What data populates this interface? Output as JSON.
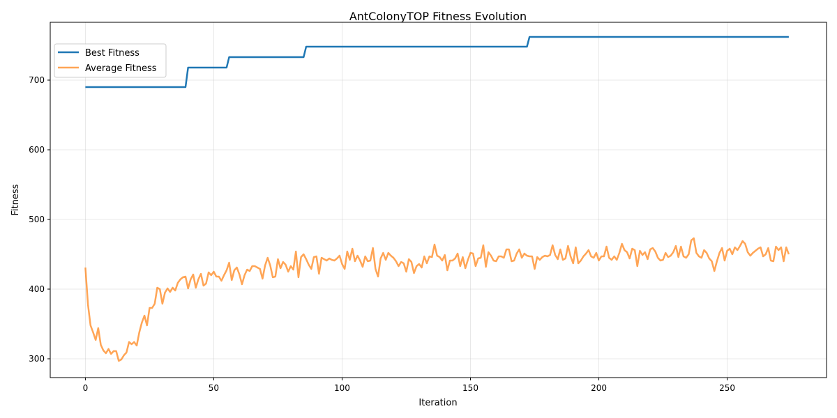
{
  "chart_data": {
    "type": "line",
    "title": "AntColonyTOP Fitness Evolution",
    "xlabel": "Iteration",
    "ylabel": "Fitness",
    "xlim": [
      -13.7,
      288.7
    ],
    "ylim": [
      273,
      783
    ],
    "xticks": [
      0,
      50,
      100,
      150,
      200,
      250
    ],
    "yticks": [
      300,
      400,
      500,
      600,
      700
    ],
    "grid": true,
    "legend_position": "top-left",
    "colors": {
      "best": "#1f77b4",
      "average": "#ff7f0e"
    },
    "series": [
      {
        "name": "Best Fitness",
        "key": "best",
        "steps": [
          {
            "from": 0,
            "to": 39,
            "value": 690
          },
          {
            "from": 40,
            "to": 55,
            "value": 718
          },
          {
            "from": 56,
            "to": 85,
            "value": 733
          },
          {
            "from": 86,
            "to": 172,
            "value": 748
          },
          {
            "from": 173,
            "to": 274,
            "value": 762
          }
        ]
      },
      {
        "name": "Average Fitness",
        "key": "average",
        "values": [
          431,
          378,
          348,
          338,
          327,
          344,
          320,
          312,
          308,
          314,
          307,
          311,
          311,
          297,
          299,
          305,
          309,
          324,
          321,
          324,
          319,
          338,
          352,
          362,
          348,
          373,
          373,
          379,
          402,
          400,
          379,
          395,
          401,
          396,
          402,
          398,
          409,
          414,
          417,
          418,
          401,
          414,
          421,
          402,
          414,
          422,
          405,
          408,
          424,
          420,
          425,
          418,
          418,
          412,
          420,
          427,
          438,
          413,
          427,
          431,
          421,
          407,
          420,
          428,
          426,
          433,
          433,
          431,
          429,
          415,
          434,
          445,
          434,
          417,
          418,
          443,
          430,
          439,
          435,
          425,
          433,
          428,
          454,
          417,
          446,
          450,
          443,
          435,
          429,
          446,
          447,
          422,
          445,
          443,
          441,
          444,
          442,
          441,
          444,
          448,
          436,
          429,
          454,
          442,
          458,
          440,
          448,
          441,
          432,
          447,
          440,
          441,
          459,
          429,
          418,
          444,
          452,
          442,
          452,
          448,
          445,
          440,
          433,
          439,
          437,
          425,
          443,
          439,
          423,
          433,
          436,
          431,
          447,
          437,
          447,
          446,
          464,
          448,
          446,
          441,
          449,
          427,
          441,
          441,
          444,
          451,
          433,
          446,
          430,
          442,
          452,
          451,
          433,
          444,
          445,
          463,
          432,
          453,
          448,
          441,
          440,
          447,
          447,
          445,
          457,
          457,
          440,
          441,
          451,
          457,
          445,
          451,
          448,
          447,
          447,
          429,
          446,
          442,
          446,
          448,
          447,
          449,
          463,
          449,
          443,
          457,
          442,
          444,
          462,
          447,
          437,
          460,
          437,
          441,
          447,
          451,
          456,
          447,
          445,
          452,
          441,
          447,
          447,
          461,
          445,
          442,
          447,
          442,
          452,
          465,
          456,
          453,
          444,
          458,
          456,
          433,
          455,
          449,
          453,
          443,
          457,
          459,
          454,
          445,
          441,
          442,
          452,
          446,
          448,
          453,
          462,
          446,
          461,
          447,
          445,
          450,
          470,
          473,
          452,
          447,
          445,
          456,
          452,
          444,
          440,
          426,
          440,
          452,
          459,
          441,
          455,
          458,
          450,
          460,
          456,
          462,
          469,
          465,
          453,
          448,
          452,
          455,
          458,
          460,
          447,
          450,
          459,
          441,
          440,
          461,
          456,
          460,
          440,
          460,
          450
        ]
      }
    ]
  }
}
